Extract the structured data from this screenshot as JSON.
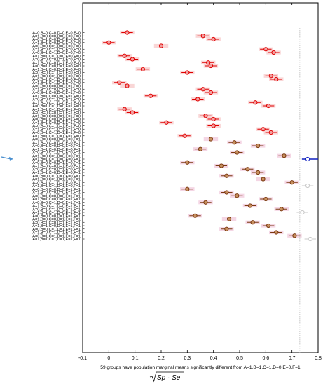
{
  "chart_data": {
    "type": "scatter",
    "subtype": "interval-plot",
    "title": "",
    "xlabel": "√(Sp·Se)",
    "xlabel_parts": {
      "sqrt_symbol": "√",
      "radicand": "Sp · Se"
    },
    "caption": "59 groups have population marginal means significantly different from A=1,B=1,C=1,D=0,E=0,F=1",
    "xlim": [
      -0.1,
      0.8
    ],
    "xticks": [
      "-0.1",
      "0",
      "0.1",
      "0.2",
      "0.3",
      "0.4",
      "0.5",
      "0.6",
      "0.7",
      "0.8"
    ],
    "grid": false,
    "legend": "none",
    "reference_line_x": 0.73,
    "highlighted_group": "A=1,B=1,C=1,D=0,E=0,F=1",
    "interval_halfwidth": 0.022,
    "colors": {
      "red_edge": "#e00000",
      "red_fill": "#f2a0a0",
      "red_band": "#f7c4c4",
      "brown_edge": "#7a3a10",
      "brown_fill": "#c79060",
      "brown_band": "#f0c4d8",
      "blue": "#1020c0",
      "gray": "#c8c8c8",
      "arrow": "#4a90d0"
    },
    "groups": [
      {
        "label": "A=0,B=0,C=0,D=0,E=0,F=0",
        "mean": 0.07,
        "color": "red"
      },
      {
        "label": "A=1,B=0,C=0,D=0,E=0,F=0",
        "mean": 0.36,
        "color": "red"
      },
      {
        "label": "A=0,B=1,C=0,D=0,E=0,F=0",
        "mean": 0.4,
        "color": "red"
      },
      {
        "label": "A=1,B=1,C=0,D=0,E=0,F=0",
        "mean": 0.0,
        "color": "red"
      },
      {
        "label": "A=0,B=0,C=1,D=0,E=0,F=0",
        "mean": 0.2,
        "color": "red"
      },
      {
        "label": "A=1,B=0,C=1,D=0,E=0,F=0",
        "mean": 0.6,
        "color": "red"
      },
      {
        "label": "A=0,B=1,C=1,D=0,E=0,F=0",
        "mean": 0.63,
        "color": "red"
      },
      {
        "label": "A=1,B=1,C=1,D=0,E=0,F=0",
        "mean": 0.06,
        "color": "red"
      },
      {
        "label": "A=0,B=0,C=0,D=1,E=0,F=0",
        "mean": 0.09,
        "color": "red"
      },
      {
        "label": "A=1,B=0,C=0,D=1,E=0,F=0",
        "mean": 0.38,
        "color": "red"
      },
      {
        "label": "A=0,B=1,C=0,D=1,E=0,F=0",
        "mean": 0.39,
        "color": "red"
      },
      {
        "label": "A=1,B=1,C=0,D=1,E=0,F=0",
        "mean": 0.13,
        "color": "red"
      },
      {
        "label": "A=0,B=0,C=1,D=1,E=0,F=0",
        "mean": 0.3,
        "color": "red"
      },
      {
        "label": "A=1,B=0,C=1,D=1,E=0,F=0",
        "mean": 0.62,
        "color": "red"
      },
      {
        "label": "A=0,B=1,C=1,D=1,E=0,F=0",
        "mean": 0.64,
        "color": "red"
      },
      {
        "label": "A=1,B=1,C=1,D=1,E=0,F=0",
        "mean": 0.04,
        "color": "red"
      },
      {
        "label": "A=0,B=0,C=0,D=0,E=1,F=0",
        "mean": 0.07,
        "color": "red"
      },
      {
        "label": "A=1,B=0,C=0,D=0,E=1,F=0",
        "mean": 0.36,
        "color": "red"
      },
      {
        "label": "A=0,B=1,C=0,D=0,E=1,F=0",
        "mean": 0.39,
        "color": "red"
      },
      {
        "label": "A=1,B=1,C=0,D=0,E=1,F=0",
        "mean": 0.16,
        "color": "red"
      },
      {
        "label": "A=0,B=0,C=1,D=0,E=1,F=0",
        "mean": 0.34,
        "color": "red"
      },
      {
        "label": "A=1,B=0,C=1,D=0,E=1,F=0",
        "mean": 0.56,
        "color": "red"
      },
      {
        "label": "A=0,B=1,C=1,D=0,E=1,F=0",
        "mean": 0.61,
        "color": "red"
      },
      {
        "label": "A=1,B=1,C=1,D=0,E=1,F=0",
        "mean": 0.06,
        "color": "red"
      },
      {
        "label": "A=0,B=0,C=0,D=1,E=1,F=0",
        "mean": 0.09,
        "color": "red"
      },
      {
        "label": "A=1,B=0,C=0,D=1,E=1,F=0",
        "mean": 0.37,
        "color": "red"
      },
      {
        "label": "A=0,B=1,C=0,D=1,E=1,F=0",
        "mean": 0.4,
        "color": "red"
      },
      {
        "label": "A=1,B=1,C=0,D=1,E=1,F=0",
        "mean": 0.22,
        "color": "red"
      },
      {
        "label": "A=0,B=0,C=1,D=1,E=1,F=0",
        "mean": 0.4,
        "color": "red"
      },
      {
        "label": "A=1,B=0,C=1,D=1,E=1,F=0",
        "mean": 0.59,
        "color": "red"
      },
      {
        "label": "A=0,B=1,C=1,D=1,E=1,F=0",
        "mean": 0.62,
        "color": "red"
      },
      {
        "label": "A=1,B=1,C=1,D=1,E=1,F=0",
        "mean": 0.29,
        "color": "red"
      },
      {
        "label": "A=0,B=0,C=0,D=0,E=0,F=1",
        "mean": 0.39,
        "color": "brown"
      },
      {
        "label": "A=1,B=0,C=0,D=0,E=0,F=1",
        "mean": 0.48,
        "color": "brown"
      },
      {
        "label": "A=0,B=1,C=0,D=0,E=0,F=1",
        "mean": 0.57,
        "color": "brown"
      },
      {
        "label": "A=1,B=1,C=0,D=0,E=0,F=1",
        "mean": 0.35,
        "color": "brown"
      },
      {
        "label": "A=0,B=0,C=1,D=0,E=0,F=1",
        "mean": 0.49,
        "color": "brown"
      },
      {
        "label": "A=1,B=0,C=1,D=0,E=0,F=1",
        "mean": 0.67,
        "color": "brown"
      },
      {
        "label": "A=1,B=1,C=1,D=0,E=0,F=1",
        "mean": 0.76,
        "color": "blue",
        "highlight": true
      },
      {
        "label": "A=0,B=0,C=0,D=1,E=0,F=1",
        "mean": 0.3,
        "color": "brown"
      },
      {
        "label": "A=1,B=0,C=0,D=1,E=0,F=1",
        "mean": 0.43,
        "color": "brown"
      },
      {
        "label": "A=0,B=1,C=0,D=1,E=0,F=1",
        "mean": 0.53,
        "color": "brown"
      },
      {
        "label": "A=1,B=1,C=0,D=1,E=0,F=1",
        "mean": 0.57,
        "color": "brown"
      },
      {
        "label": "A=0,B=0,C=1,D=1,E=0,F=1",
        "mean": 0.45,
        "color": "brown"
      },
      {
        "label": "A=1,B=0,C=1,D=1,E=0,F=1",
        "mean": 0.59,
        "color": "brown"
      },
      {
        "label": "A=0,B=1,C=1,D=1,E=0,F=1",
        "mean": 0.7,
        "color": "brown"
      },
      {
        "label": "A=1,B=1,C=1,D=1,E=0,F=1",
        "mean": 0.76,
        "color": "gray"
      },
      {
        "label": "A=0,B=0,C=0,D=0,E=1,F=1",
        "mean": 0.3,
        "color": "brown"
      },
      {
        "label": "A=1,B=0,C=0,D=0,E=1,F=1",
        "mean": 0.45,
        "color": "brown"
      },
      {
        "label": "A=0,B=1,C=0,D=0,E=1,F=1",
        "mean": 0.49,
        "color": "brown"
      },
      {
        "label": "A=1,B=1,C=0,D=0,E=1,F=1",
        "mean": 0.6,
        "color": "brown"
      },
      {
        "label": "A=0,B=0,C=1,D=0,E=1,F=1",
        "mean": 0.37,
        "color": "brown"
      },
      {
        "label": "A=1,B=0,C=1,D=0,E=1,F=1",
        "mean": 0.54,
        "color": "brown"
      },
      {
        "label": "A=0,B=1,C=1,D=0,E=1,F=1",
        "mean": 0.66,
        "color": "brown"
      },
      {
        "label": "A=1,B=1,C=1,D=0,E=1,F=1",
        "mean": 0.74,
        "color": "gray"
      },
      {
        "label": "A=0,B=0,C=0,D=1,E=1,F=1",
        "mean": 0.33,
        "color": "brown"
      },
      {
        "label": "A=1,B=0,C=0,D=1,E=1,F=1",
        "mean": 0.46,
        "color": "brown"
      },
      {
        "label": "A=0,B=1,C=0,D=1,E=1,F=1",
        "mean": 0.55,
        "color": "brown"
      },
      {
        "label": "A=1,B=1,C=0,D=1,E=1,F=1",
        "mean": 0.61,
        "color": "brown"
      },
      {
        "label": "A=0,B=0,C=1,D=1,E=1,F=1",
        "mean": 0.45,
        "color": "brown"
      },
      {
        "label": "A=1,B=0,C=1,D=1,E=1,F=1",
        "mean": 0.64,
        "color": "brown"
      },
      {
        "label": "A=0,B=1,C=1,D=1,E=1,F=1",
        "mean": 0.71,
        "color": "brown"
      },
      {
        "label": "A=1,B=1,C=1,D=1,E=1,F=1",
        "mean": 0.77,
        "color": "gray"
      }
    ]
  }
}
